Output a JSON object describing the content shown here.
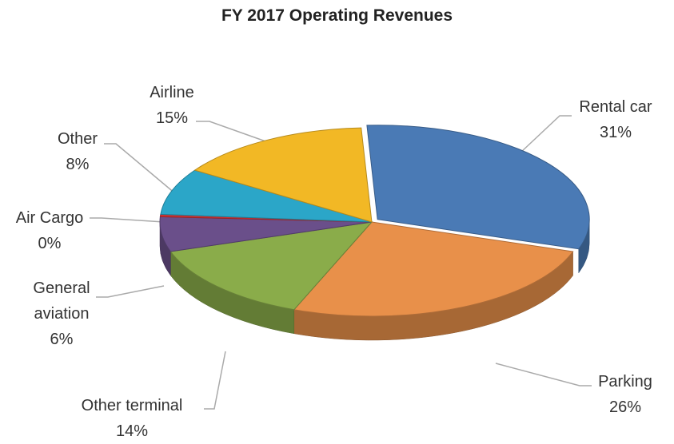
{
  "chart_data": {
    "type": "pie",
    "title": "FY 2017 Operating Revenues",
    "categories": [
      "Rental car",
      "Parking",
      "Other terminal",
      "General aviation",
      "Air Cargo",
      "Other",
      "Airline"
    ],
    "values": [
      31,
      26,
      14,
      6,
      0.4,
      8,
      15
    ],
    "value_labels": [
      "31%",
      "26%",
      "14%",
      "6%",
      "0%",
      "8%",
      "15%"
    ],
    "colors": [
      "#4a7ab5",
      "#e8904a",
      "#8aac4a",
      "#6a4f8a",
      "#d03030",
      "#2ba6c8",
      "#f2b825"
    ]
  }
}
